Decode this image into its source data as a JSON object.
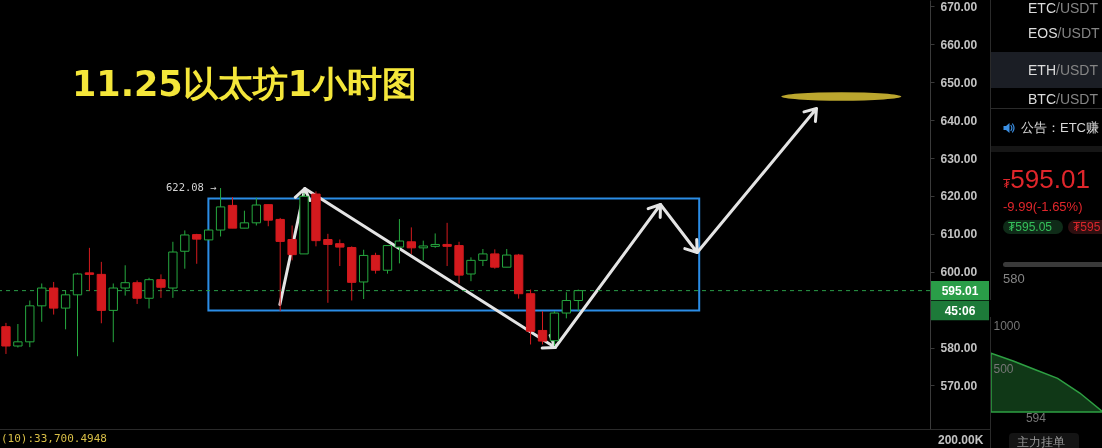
{
  "chart_data": [
    {
      "type": "candlestick",
      "title": "11.25以太坊1小时图",
      "categories": [
        null,
        null,
        null,
        null,
        null,
        null,
        null,
        null,
        null,
        null,
        null,
        null,
        null,
        null,
        null,
        null,
        null,
        null,
        null,
        null,
        null,
        null,
        null,
        null,
        null,
        null,
        null,
        null,
        null,
        null,
        null,
        null,
        null,
        null,
        null,
        null,
        null,
        null,
        null,
        null,
        null,
        null,
        null,
        null,
        null,
        null,
        null,
        null,
        null,
        null,
        null,
        null,
        null,
        null,
        null,
        null,
        null,
        null,
        null,
        null,
        null,
        null,
        null,
        null,
        null,
        null,
        null,
        null,
        null,
        null,
        null,
        null,
        null,
        null,
        null,
        null,
        null,
        null
      ],
      "ohlc": [
        [
          585.5,
          586.5,
          578.3,
          580.4
        ],
        [
          580.4,
          586.2,
          580.0,
          581.5
        ],
        [
          581.5,
          592.4,
          580.1,
          591.0
        ],
        [
          591.0,
          596.9,
          586.8,
          595.7
        ],
        [
          595.7,
          597.3,
          588.7,
          590.4
        ],
        [
          590.4,
          595.1,
          584.8,
          593.9
        ],
        [
          593.9,
          599.7,
          577.7,
          599.4
        ],
        [
          599.7,
          606.3,
          594.9,
          599.3
        ],
        [
          599.3,
          602.6,
          586.4,
          589.8
        ],
        [
          589.8,
          596.9,
          581.4,
          595.7
        ],
        [
          595.7,
          601.7,
          593.7,
          597.1
        ],
        [
          597.1,
          597.7,
          591.5,
          593.0
        ],
        [
          593.0,
          598.4,
          590.3,
          597.9
        ],
        [
          597.9,
          599.3,
          593.1,
          595.9
        ],
        [
          595.7,
          607.9,
          593.1,
          605.2
        ],
        [
          605.4,
          610.9,
          600.8,
          609.7
        ],
        [
          609.8,
          610.0,
          602.1,
          608.6
        ],
        [
          608.4,
          611.0,
          608.4,
          611.0
        ],
        [
          611.0,
          622.08,
          609.3,
          617.1
        ],
        [
          617.5,
          619.7,
          611.5,
          611.5
        ],
        [
          611.5,
          616.1,
          611.5,
          612.9
        ],
        [
          612.9,
          619.5,
          612.2,
          617.6
        ],
        [
          617.7,
          617.7,
          612.0,
          613.6
        ],
        [
          613.8,
          614.2,
          589.6,
          608.0
        ],
        [
          608.5,
          612.2,
          603.0,
          604.5
        ],
        [
          604.7,
          620.8,
          604.7,
          619.9
        ],
        [
          620.5,
          621.2,
          606.7,
          608.2
        ],
        [
          608.5,
          610.0,
          591.8,
          607.2
        ],
        [
          607.4,
          608.5,
          601.5,
          606.5
        ],
        [
          606.4,
          606.7,
          592.4,
          597.2
        ],
        [
          597.3,
          605.8,
          592.8,
          604.3
        ],
        [
          604.3,
          605.0,
          599.5,
          600.4
        ],
        [
          600.4,
          606.9,
          599.5,
          606.9
        ],
        [
          606.5,
          613.9,
          602.2,
          608.1
        ],
        [
          607.9,
          611.7,
          604.7,
          606.3
        ],
        [
          606.3,
          608.2,
          603.0,
          606.8
        ],
        [
          606.7,
          610.1,
          606.3,
          607.2
        ],
        [
          607.2,
          612.9,
          601.5,
          606.7
        ],
        [
          606.9,
          607.9,
          596.9,
          599.1
        ],
        [
          599.4,
          603.8,
          597.5,
          603.0
        ],
        [
          603.0,
          606.0,
          601.5,
          604.7
        ],
        [
          604.7,
          605.9,
          600.8,
          601.2
        ],
        [
          601.2,
          606.0,
          601.2,
          604.4
        ],
        [
          604.4,
          604.7,
          592.9,
          594.2
        ],
        [
          594.2,
          595.3,
          580.8,
          584.3
        ],
        [
          584.5,
          589.6,
          580.8,
          581.7
        ],
        [
          581.8,
          589.6,
          580.4,
          589.1
        ],
        [
          589.1,
          594.6,
          587.7,
          592.4
        ],
        [
          592.4,
          595.3,
          589.6,
          595.01
        ],
        null,
        null,
        null,
        null,
        null,
        null,
        null,
        null,
        null,
        null,
        null,
        null,
        null,
        null,
        null,
        null,
        null,
        null,
        null,
        null,
        null,
        null,
        null,
        null,
        null,
        null,
        null,
        null,
        null
      ],
      "colors": [
        "#d41a1e",
        "#26a83f",
        "#26a83f",
        "#26a83f",
        "#d41a1e",
        "#26a83f",
        "#26a83f",
        "#d41a1e",
        "#d41a1e",
        "#26a83f",
        "#26a83f",
        "#d41a1e",
        "#26a83f",
        "#d41a1e",
        "#26a83f",
        "#26a83f",
        "#d41a1e",
        "#26a83f",
        "#26a83f",
        "#d41a1e",
        "#26a83f",
        "#26a83f",
        "#d41a1e",
        "#d41a1e",
        "#d41a1e",
        "#26a83f",
        "#d41a1e",
        "#d41a1e",
        "#d41a1e",
        "#d41a1e",
        "#26a83f",
        "#d41a1e",
        "#26a83f",
        "#26a83f",
        "#d41a1e",
        "#26a83f",
        "#26a83f",
        "#d41a1e",
        "#d41a1e",
        "#26a83f",
        "#26a83f",
        "#d41a1e",
        "#26a83f",
        "#d41a1e",
        "#d41a1e",
        "#d41a1e",
        "#26a83f",
        "#26a83f",
        "#26a83f",
        null,
        null,
        null,
        null,
        null,
        null,
        null,
        null,
        null,
        null,
        null,
        null,
        null,
        null,
        null,
        null,
        null,
        null,
        null,
        null,
        null,
        null,
        null,
        null,
        null,
        null,
        null,
        null,
        null
      ],
      "ylim": [
        558.5,
        671.7
      ],
      "yticks": [
        {
          "value": 570,
          "label": "570.00"
        },
        {
          "value": 580,
          "label": "580.00"
        },
        {
          "value": 600,
          "label": "600.00"
        },
        {
          "value": 610,
          "label": "610.00"
        },
        {
          "value": 620,
          "label": "620.00"
        },
        {
          "value": 630,
          "label": "630.00"
        },
        {
          "value": 640,
          "label": "640.00"
        },
        {
          "value": 650,
          "label": "650.00"
        },
        {
          "value": 660,
          "label": "660.00"
        },
        {
          "value": 670,
          "label": "670.00"
        }
      ],
      "tick_labels": "y",
      "ref_lines": [
        {
          "axis": "y",
          "value": 595.01,
          "label": "595.01",
          "color": "#2a9d48",
          "line_style": "dashed"
        }
      ],
      "annotations": [
        "622.08 →",
        "45:06"
      ]
    },
    {
      "type": "other",
      "annotations": [
        "ETC/USDT",
        "EOS/USDT",
        "ETH/USDT",
        "BTC/USDT",
        "公告：ETC赚",
        "₮595.01",
        "-9.99(-1.65%)",
        "₮595.05",
        "₮595",
        "580"
      ]
    },
    {
      "type": "area",
      "categories": [
        null,
        null,
        "594",
        null,
        null,
        null
      ],
      "values": [
        680,
        590,
        490,
        390,
        220,
        10
      ],
      "color": "#2ea043",
      "ylim": [
        0,
        1100
      ],
      "yticks": [
        500,
        1000
      ],
      "annotations": [
        "主力挂单"
      ]
    },
    {
      "type": "other",
      "annotations": [
        "(10):33,700.4948",
        "200.00K"
      ]
    }
  ]
}
